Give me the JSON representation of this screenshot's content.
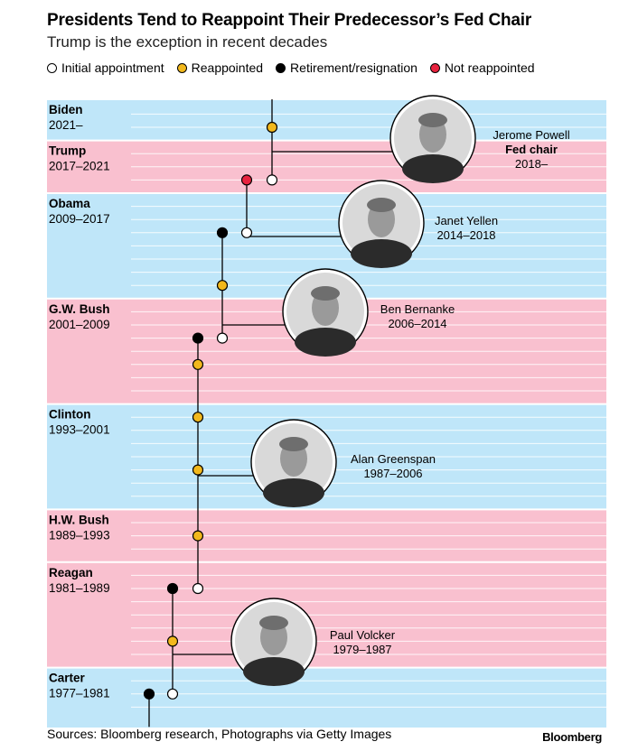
{
  "header": {
    "title": "Presidents Tend to Reappoint Their Predecessor’s Fed Chair",
    "subtitle": "Trump is the exception in recent decades"
  },
  "legend": [
    {
      "label": "Initial appointment",
      "fill": "#ffffff"
    },
    {
      "label": "Reappointed",
      "fill": "#f2b81c"
    },
    {
      "label": "Retirement/resignation",
      "fill": "#000000"
    },
    {
      "label": "Not reappointed",
      "fill": "#e8233f"
    }
  ],
  "footer": {
    "sources": "Sources: Bloomberg research, Photographs via Getty Images",
    "brand": "Bloomberg"
  },
  "colors": {
    "blue_band": "#bfe6f9",
    "pink_band": "#f9c0cf",
    "band_line": "#ffffff",
    "axis": "#000000"
  },
  "chart_data": {
    "type": "timeline",
    "time_range": [
      1977,
      2024
    ],
    "presidents": [
      {
        "name": "Biden",
        "years": "2021–",
        "start": 2021,
        "end": 2024,
        "band": "blue"
      },
      {
        "name": "Trump",
        "years": "2017–2021",
        "start": 2017,
        "end": 2021,
        "band": "pink"
      },
      {
        "name": "Obama",
        "years": "2009–2017",
        "start": 2009,
        "end": 2017,
        "band": "blue"
      },
      {
        "name": "G.W. Bush",
        "years": "2001–2009",
        "start": 2001,
        "end": 2009,
        "band": "pink"
      },
      {
        "name": "Clinton",
        "years": "1993–2001",
        "start": 1993,
        "end": 2001,
        "band": "blue"
      },
      {
        "name": "H.W. Bush",
        "years": "1989–1993",
        "start": 1989,
        "end": 1993,
        "band": "pink"
      },
      {
        "name": "Reagan",
        "years": "1981–1989",
        "start": 1981,
        "end": 1989,
        "band": "pink"
      },
      {
        "name": "Carter",
        "years": "1977–1981",
        "start": 1977,
        "end": 1981,
        "band": "blue"
      }
    ],
    "chairs": [
      {
        "name": "Jerome Powell",
        "role": "Fed chair",
        "years": "2018–",
        "start": 2018,
        "end": 2024,
        "line_end": 2023.9,
        "events": [
          {
            "year": 2018,
            "type": "initial"
          },
          {
            "year": 2022,
            "type": "reappointed"
          }
        ]
      },
      {
        "name": "Janet Yellen",
        "role": "",
        "years": "2014–2018",
        "start": 2014,
        "end": 2018,
        "events": [
          {
            "year": 2014,
            "type": "initial"
          },
          {
            "year": 2018,
            "type": "not_reappointed"
          }
        ]
      },
      {
        "name": "Ben Bernanke",
        "role": "",
        "years": "2006–2014",
        "start": 2006,
        "end": 2014,
        "events": [
          {
            "year": 2006,
            "type": "initial"
          },
          {
            "year": 2010,
            "type": "reappointed"
          },
          {
            "year": 2014,
            "type": "retirement"
          }
        ]
      },
      {
        "name": "Alan Greenspan",
        "role": "",
        "years": "1987–2006",
        "start": 1987,
        "end": 2006,
        "events": [
          {
            "year": 1987,
            "type": "initial"
          },
          {
            "year": 1991,
            "type": "reappointed"
          },
          {
            "year": 1996,
            "type": "reappointed"
          },
          {
            "year": 2000,
            "type": "reappointed"
          },
          {
            "year": 2004,
            "type": "reappointed"
          },
          {
            "year": 2006,
            "type": "retirement"
          }
        ]
      },
      {
        "name": "Paul Volcker",
        "role": "",
        "years": "1979–1987",
        "start": 1979,
        "end": 1987,
        "events": [
          {
            "year": 1979,
            "type": "initial"
          },
          {
            "year": 1983,
            "type": "reappointed"
          },
          {
            "year": 1987,
            "type": "retirement"
          }
        ]
      },
      {
        "name": "",
        "role": "",
        "years": "",
        "start": 1977,
        "end": 1979,
        "line_start": 1976.5,
        "events": [
          {
            "year": 1979,
            "type": "retirement"
          }
        ]
      }
    ]
  }
}
